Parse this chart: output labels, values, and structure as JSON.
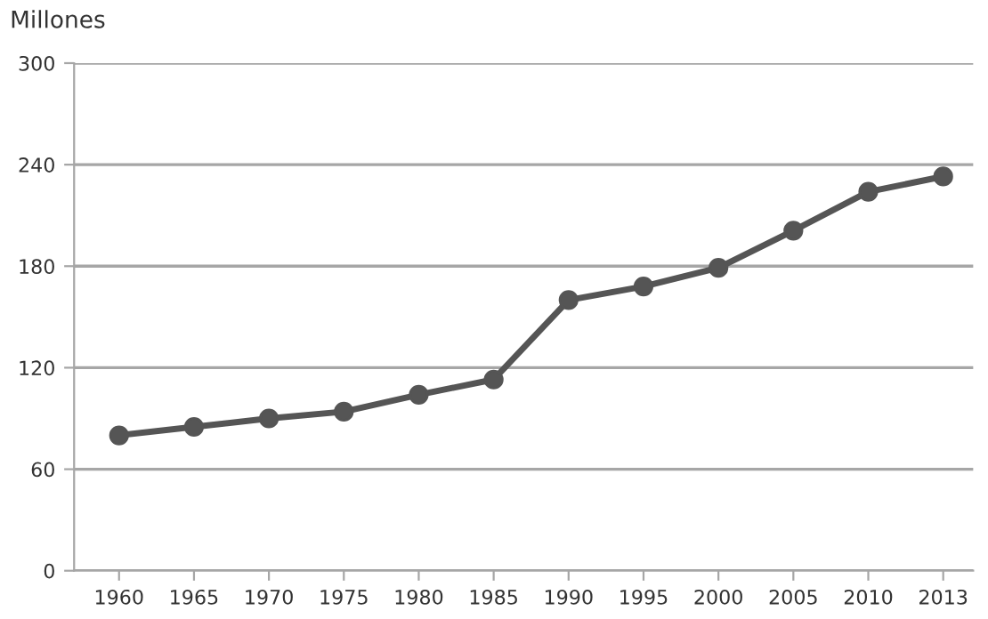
{
  "chart_data": {
    "type": "line",
    "ylabel": "Millones",
    "categories": [
      "1960",
      "1965",
      "1970",
      "1975",
      "1980",
      "1985",
      "1990",
      "1995",
      "2000",
      "2005",
      "2010",
      "2013"
    ],
    "series": [
      {
        "color": "#555555",
        "values": [
          80,
          85,
          90,
          94,
          104,
          113,
          160,
          168,
          179,
          201,
          224,
          233
        ]
      }
    ],
    "ylim": [
      0,
      300
    ],
    "yticks": [
      0,
      60,
      120,
      180,
      240,
      300
    ],
    "grid": "y",
    "marker": "circle",
    "line_style": "solid",
    "legend": false
  }
}
